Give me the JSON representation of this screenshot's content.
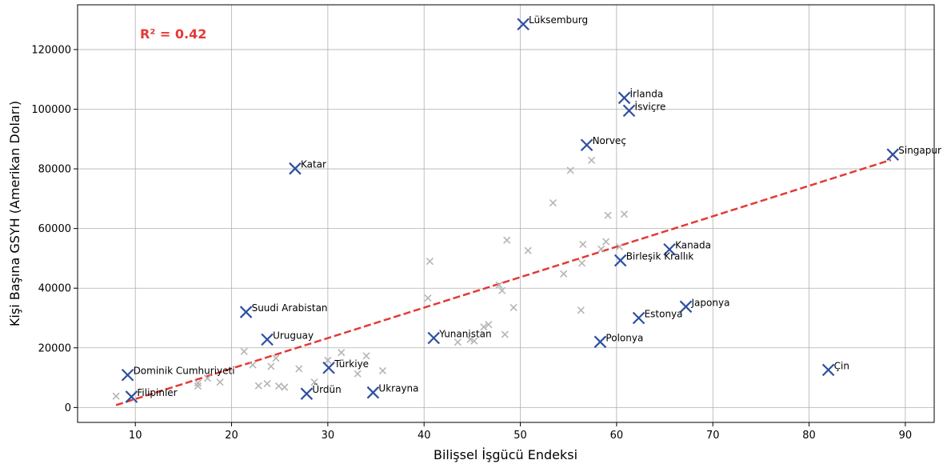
{
  "chart_data": {
    "type": "scatter",
    "xlabel": "Bilişsel İşgücü Endeksi",
    "ylabel": "Kişi Başına GSYH (Amerikan Doları)",
    "xlim": [
      4.0,
      93.0
    ],
    "ylim": [
      -5000,
      135000
    ],
    "x_ticks": [
      10,
      20,
      30,
      40,
      50,
      60,
      70,
      80,
      90
    ],
    "y_ticks": [
      0,
      20000,
      40000,
      60000,
      80000,
      100000,
      120000
    ],
    "grid": true,
    "annotation": "R² = 0.42",
    "trendline": {
      "x": [
        8,
        88.5
      ],
      "y": [
        800,
        83000
      ],
      "color": "#e53935",
      "style": "dashed"
    },
    "highlighted_color": "#2e4fa0",
    "background_color": "#b5b5b5",
    "annotation_color": "#e53935",
    "highlighted": [
      {
        "label": "Lüksemburg",
        "x": 50.3,
        "y": 128500
      },
      {
        "label": "İrlanda",
        "x": 60.8,
        "y": 103800
      },
      {
        "label": "İsviçre",
        "x": 61.3,
        "y": 99500
      },
      {
        "label": "Norveç",
        "x": 56.9,
        "y": 88000
      },
      {
        "label": "Singapur",
        "x": 88.7,
        "y": 84800
      },
      {
        "label": "Katar",
        "x": 26.6,
        "y": 80100
      },
      {
        "label": "Kanada",
        "x": 65.5,
        "y": 53000
      },
      {
        "label": "Birleşik Krallık",
        "x": 60.4,
        "y": 49300
      },
      {
        "label": "Japonya",
        "x": 67.2,
        "y": 33800
      },
      {
        "label": "Suudi Arabistan",
        "x": 21.5,
        "y": 32000
      },
      {
        "label": "Estonya",
        "x": 62.3,
        "y": 30000
      },
      {
        "label": "Yunanistan",
        "x": 41.0,
        "y": 23300
      },
      {
        "label": "Uruguay",
        "x": 23.7,
        "y": 22800
      },
      {
        "label": "Polonya",
        "x": 58.3,
        "y": 22000
      },
      {
        "label": "Türkiye",
        "x": 30.1,
        "y": 13300
      },
      {
        "label": "Çin",
        "x": 82.0,
        "y": 12600
      },
      {
        "label": "Dominik Cumhuriyeti",
        "x": 9.2,
        "y": 10900
      },
      {
        "label": "Ürdün",
        "x": 27.8,
        "y": 4600
      },
      {
        "label": "Ukrayna",
        "x": 34.7,
        "y": 5000
      },
      {
        "label": "Filipinler",
        "x": 9.6,
        "y": 3600
      }
    ],
    "others": [
      {
        "x": 8.0,
        "y": 3800
      },
      {
        "x": 16.5,
        "y": 7200
      },
      {
        "x": 16.5,
        "y": 8200
      },
      {
        "x": 17.5,
        "y": 9800
      },
      {
        "x": 18.8,
        "y": 8500
      },
      {
        "x": 21.3,
        "y": 18800
      },
      {
        "x": 22.2,
        "y": 14300
      },
      {
        "x": 22.8,
        "y": 7300
      },
      {
        "x": 23.7,
        "y": 8000
      },
      {
        "x": 24.1,
        "y": 13800
      },
      {
        "x": 24.6,
        "y": 16500
      },
      {
        "x": 24.9,
        "y": 7200
      },
      {
        "x": 25.5,
        "y": 6800
      },
      {
        "x": 27.0,
        "y": 13000
      },
      {
        "x": 28.6,
        "y": 8500
      },
      {
        "x": 30.0,
        "y": 15800
      },
      {
        "x": 31.4,
        "y": 18400
      },
      {
        "x": 33.1,
        "y": 11300
      },
      {
        "x": 34.0,
        "y": 17300
      },
      {
        "x": 35.7,
        "y": 12300
      },
      {
        "x": 40.4,
        "y": 36700
      },
      {
        "x": 40.6,
        "y": 49000
      },
      {
        "x": 43.5,
        "y": 21900
      },
      {
        "x": 44.8,
        "y": 22800
      },
      {
        "x": 45.2,
        "y": 22300
      },
      {
        "x": 46.2,
        "y": 27000
      },
      {
        "x": 46.7,
        "y": 27800
      },
      {
        "x": 47.8,
        "y": 41000
      },
      {
        "x": 48.1,
        "y": 39200
      },
      {
        "x": 48.4,
        "y": 24500
      },
      {
        "x": 48.6,
        "y": 56100
      },
      {
        "x": 49.3,
        "y": 33500
      },
      {
        "x": 50.8,
        "y": 52600
      },
      {
        "x": 53.4,
        "y": 68600
      },
      {
        "x": 54.5,
        "y": 44800
      },
      {
        "x": 55.2,
        "y": 79500
      },
      {
        "x": 56.3,
        "y": 32600
      },
      {
        "x": 56.4,
        "y": 48400
      },
      {
        "x": 56.5,
        "y": 54700
      },
      {
        "x": 57.4,
        "y": 82900
      },
      {
        "x": 58.4,
        "y": 53100
      },
      {
        "x": 58.9,
        "y": 55600
      },
      {
        "x": 59.1,
        "y": 64400
      },
      {
        "x": 60.3,
        "y": 53900
      },
      {
        "x": 60.8,
        "y": 64800
      }
    ]
  }
}
